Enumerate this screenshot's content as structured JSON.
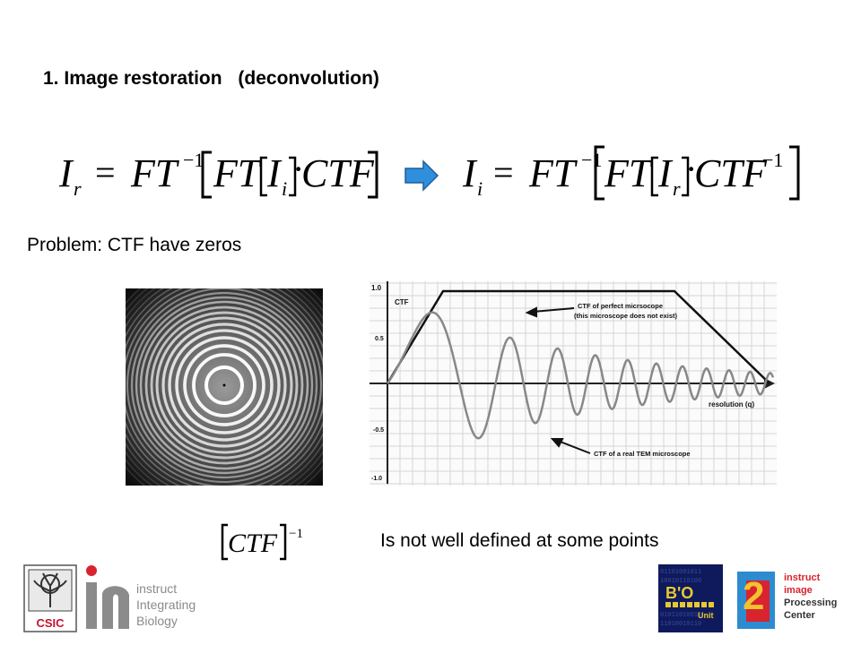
{
  "slide": {
    "title_number": "1.",
    "title_main": "Image restoration",
    "title_paren": "(deconvolution)",
    "problem_text": "Problem: CTF have zeros",
    "note_text": "Is not well defined at some points"
  },
  "equations": {
    "eq1": {
      "lhs": "I",
      "lhs_sub": "r",
      "eq": "=",
      "ft": "FT",
      "inv": "−1",
      "ft2": "FT",
      "ii": "I",
      "ii_sub": "i",
      "dot": "·",
      "ctf": "CTF"
    },
    "eq2": {
      "lhs": "I",
      "lhs_sub": "i",
      "eq": "=",
      "ft": "FT",
      "inv": "−1",
      "ft2": "FT",
      "ir": "I",
      "ir_sub": "r",
      "dot": "·",
      "ctf": "CTF",
      "ctf_inv": "−1"
    },
    "eq3": {
      "ctf": "CTF",
      "inv": "−1"
    }
  },
  "ctf_plot": {
    "y_ticks": [
      "1.0",
      "0.5",
      "-0.5",
      "-1.0"
    ],
    "y_label": "CTF",
    "x_label": "resolution (q)",
    "annotation_perfect_1": "CTF of perfect micrsocope",
    "annotation_perfect_2": "(this microscope does not exist)",
    "annotation_real": "CTF of a real TEM microscope"
  },
  "logos": {
    "csic": "CSIC",
    "instruct_1": "instruct",
    "instruct_2": "Integrating",
    "instruct_3": "Biology",
    "bio_1": "B'O",
    "bio_2": "Unit",
    "ipc_1": "instruct",
    "ipc_2": "image",
    "ipc_3": "Processing",
    "ipc_4": "Center",
    "ipc_digit": "2"
  },
  "colors": {
    "arrow_fill": "#2f8fdc",
    "arrow_stroke": "#1d5f9a",
    "csic_red": "#c8102e",
    "instruct_red": "#d9232e",
    "instruct_gray": "#8b8b8b"
  }
}
